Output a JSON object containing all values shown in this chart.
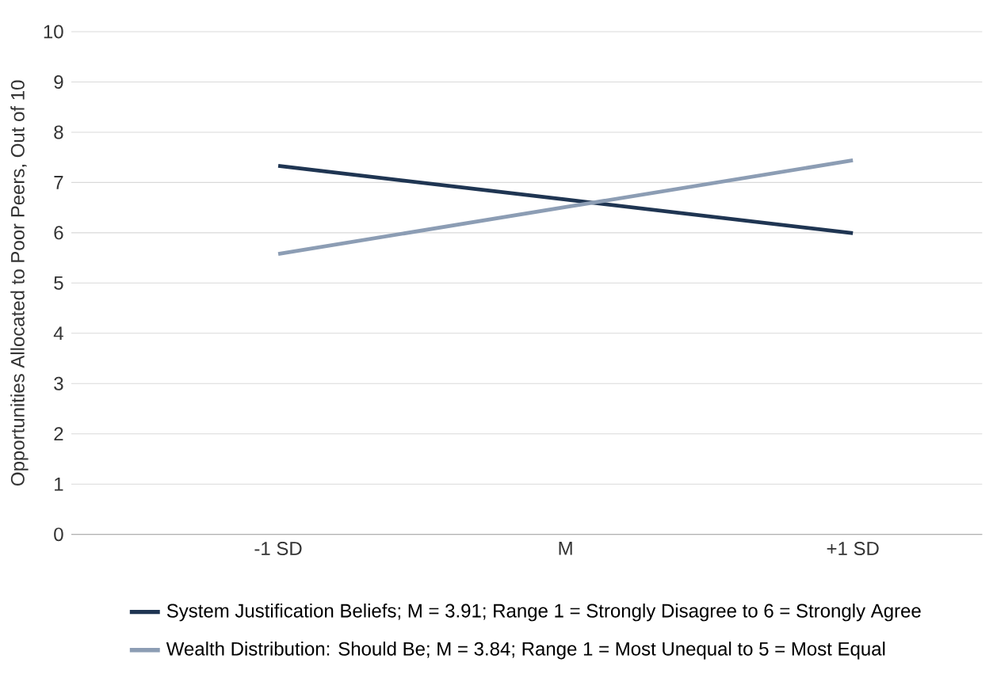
{
  "chart_data": {
    "type": "line",
    "ylabel": "Opportunities Allocated to Poor Peers, Out of 10",
    "categories": [
      "-1 SD",
      "M",
      "+1 SD"
    ],
    "series": [
      {
        "name": "System Justification Beliefs; M = 3.91; Range 1 = Strongly Disagree to 6 = Strongly Agree",
        "color": "#1f3552",
        "values": [
          7.33,
          6.66,
          5.99
        ]
      },
      {
        "name": "Wealth Distribution: Should Be; M = 3.84; Range 1 = Most Unequal to 5 = Most Equal",
        "color": "#8c9db4",
        "values": [
          5.58,
          6.51,
          7.44
        ]
      }
    ],
    "ylim": [
      0,
      10
    ],
    "yticks": [
      0,
      1,
      2,
      3,
      4,
      5,
      6,
      7,
      8,
      9,
      10
    ],
    "grid": "y",
    "legend": "bottom",
    "marker": "none",
    "line_style": "solid"
  }
}
